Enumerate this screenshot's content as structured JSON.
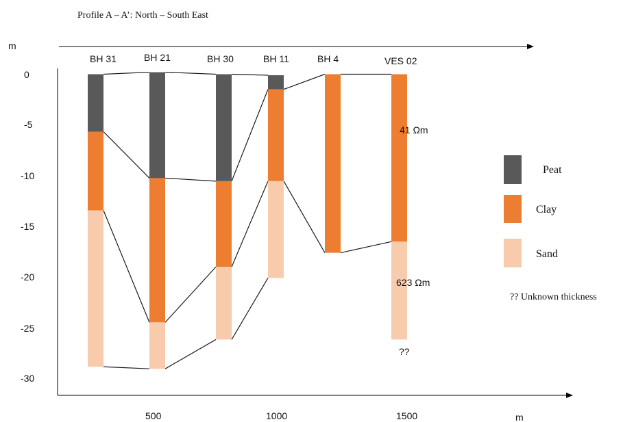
{
  "title": "Profile A – A’: North – South East",
  "y_axis": {
    "unit_label": "m",
    "ticks": [
      "0",
      "-5",
      "-10",
      "-15",
      "-20",
      "-25",
      "-30"
    ]
  },
  "x_axis": {
    "unit_label": "m",
    "ticks": [
      "500",
      "1000",
      "1500"
    ]
  },
  "legend": {
    "items": [
      {
        "label": "Peat",
        "color": "#595959"
      },
      {
        "label": "Clay",
        "color": "#ED7D31"
      },
      {
        "label": "Sand",
        "color": "#F8CBAD"
      }
    ],
    "note": "?? Unknown thickness"
  },
  "colors": {
    "peat": "#595959",
    "clay": "#ED7D31",
    "sand": "#F8CBAD",
    "axis": "#000000",
    "connector": "#1a1a1a"
  },
  "chart_data": {
    "type": "stratigraphic-profile",
    "depth_unit": "m",
    "ylim": [
      -30,
      0
    ],
    "columns": [
      {
        "name": "BH 31",
        "layers": [
          {
            "material": "Peat",
            "top": 0,
            "bottom": -5.7
          },
          {
            "material": "Clay",
            "top": -5.7,
            "bottom": -13.5
          },
          {
            "material": "Sand",
            "top": -13.5,
            "bottom": -29.0
          }
        ]
      },
      {
        "name": "BH 21",
        "layers": [
          {
            "material": "Peat",
            "top": 0.2,
            "bottom": -10.3
          },
          {
            "material": "Clay",
            "top": -10.3,
            "bottom": -24.6
          },
          {
            "material": "Sand",
            "top": -24.6,
            "bottom": -29.2
          }
        ]
      },
      {
        "name": "BH 30",
        "layers": [
          {
            "material": "Peat",
            "top": 0,
            "bottom": -10.6
          },
          {
            "material": "Clay",
            "top": -10.6,
            "bottom": -19.1
          },
          {
            "material": "Sand",
            "top": -19.1,
            "bottom": -26.3
          }
        ]
      },
      {
        "name": "BH 11",
        "layers": [
          {
            "material": "Peat",
            "top": -0.1,
            "bottom": -1.5
          },
          {
            "material": "Clay",
            "top": -1.5,
            "bottom": -10.6
          },
          {
            "material": "Sand",
            "top": -10.6,
            "bottom": -20.2
          }
        ]
      },
      {
        "name": "BH 4",
        "layers": [
          {
            "material": "Clay",
            "top": 0,
            "bottom": -17.7
          }
        ]
      },
      {
        "name": "VES 02",
        "layers": [
          {
            "material": "Clay",
            "top": 0,
            "bottom": -16.6,
            "resistivity": "41 Ωm"
          },
          {
            "material": "Sand",
            "top": -16.6,
            "bottom": -26.3,
            "resistivity": "623 Ωm",
            "base_note": "??"
          }
        ]
      }
    ]
  }
}
